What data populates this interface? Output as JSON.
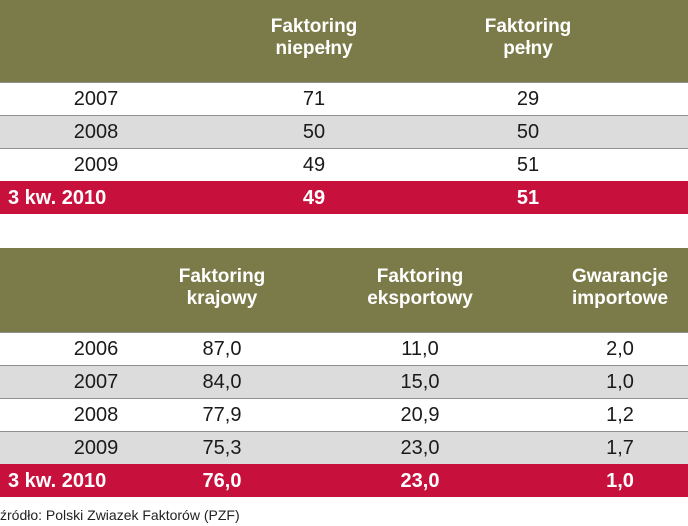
{
  "chart_data": [
    {
      "type": "table",
      "columns": [
        "",
        "Faktoring niepełny",
        "Faktoring pełny"
      ],
      "header_lines": [
        [
          "Faktoring",
          "niepełny"
        ],
        [
          "Faktoring",
          "pełny"
        ]
      ],
      "rows": [
        {
          "label": "2007",
          "values": [
            "71",
            "29"
          ],
          "highlight": false
        },
        {
          "label": "2008",
          "values": [
            "50",
            "50"
          ],
          "highlight": false
        },
        {
          "label": "2009",
          "values": [
            "49",
            "51"
          ],
          "highlight": false
        },
        {
          "label": "3 kw. 2010",
          "values": [
            "49",
            "51"
          ],
          "highlight": true
        }
      ]
    },
    {
      "type": "table",
      "columns": [
        "",
        "Faktoring krajowy",
        "Faktoring eksportowy",
        "Gwarancje importowe"
      ],
      "header_lines": [
        [
          "Faktoring",
          "krajowy"
        ],
        [
          "Faktoring",
          "eksportowy"
        ],
        [
          "Gwarancje",
          "importowe"
        ]
      ],
      "rows": [
        {
          "label": "2006",
          "values": [
            "87,0",
            "11,0",
            "2,0"
          ],
          "highlight": false
        },
        {
          "label": "2007",
          "values": [
            "84,0",
            "15,0",
            "1,0"
          ],
          "highlight": false
        },
        {
          "label": "2008",
          "values": [
            "77,9",
            "20,9",
            "1,2"
          ],
          "highlight": false
        },
        {
          "label": "2009",
          "values": [
            "75,3",
            "23,0",
            "1,7"
          ],
          "highlight": false
        },
        {
          "label": "3 kw. 2010",
          "values": [
            "76,0",
            "23,0",
            "1,0"
          ],
          "highlight": true
        }
      ]
    }
  ],
  "source": "źródło: Polski Zwiazek Faktorów (PZF)",
  "colors": {
    "header_bg": "#7b7b49",
    "header_text": "#ffffff",
    "row_odd": "#ffffff",
    "row_even": "#dcdcdc",
    "highlight_bg": "#c8103c",
    "highlight_text": "#ffffff"
  }
}
